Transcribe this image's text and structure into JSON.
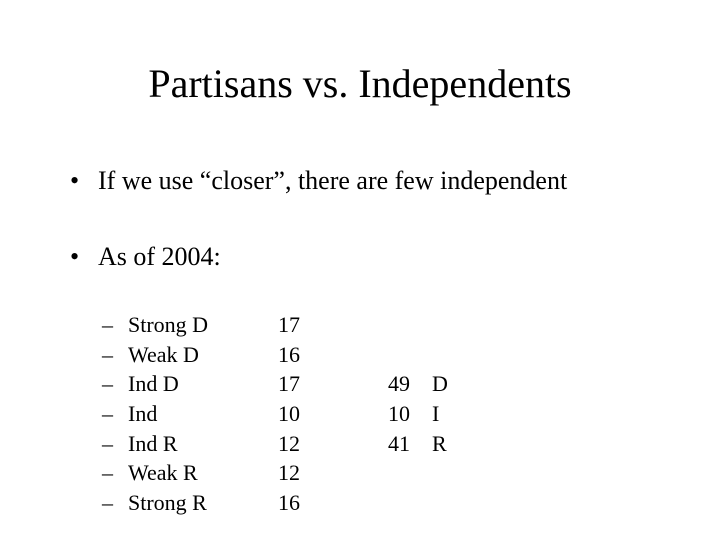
{
  "title": "Partisans vs. Independents",
  "bullet1": "If we use “closer”, there are few independent",
  "bullet2": "As of 2004:",
  "dot": "•",
  "dash": "–",
  "rows": {
    "0": {
      "label": "Strong D",
      "val": "17"
    },
    "1": {
      "label": "Weak D",
      "val": "16"
    },
    "2": {
      "label": "Ind D",
      "val": "17"
    },
    "3": {
      "label": "Ind",
      "val": "10"
    },
    "4": {
      "label": "Ind R",
      "val": "12"
    },
    "5": {
      "label": "Weak R",
      "val": "12"
    },
    "6": {
      "label": "Strong R",
      "val": "16"
    }
  },
  "summary": {
    "0": {
      "n": "49",
      "l": "D"
    },
    "1": {
      "n": "10",
      "l": "I"
    },
    "2": {
      "n": "41",
      "l": "R"
    }
  }
}
